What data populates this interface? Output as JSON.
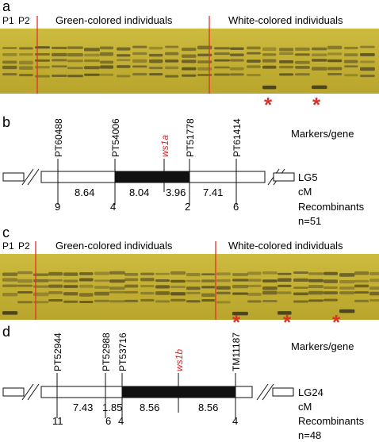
{
  "panels": {
    "a": {
      "letter": "a",
      "lanes_parent": [
        "P1",
        "P2"
      ],
      "group_left": "Green-colored individuals",
      "group_right": "White-colored individuals",
      "asterisk": "*"
    },
    "b": {
      "letter": "b",
      "header": "Markers/gene",
      "markers": [
        "PT60488",
        "PT54006",
        "ws1a",
        "PT51778",
        "PT61414"
      ],
      "gene_marker_index": 2,
      "distances": [
        "8.64",
        "8.04",
        "3.96",
        "7.41"
      ],
      "recombinants": [
        "9",
        "4",
        "2",
        "6"
      ],
      "linkage_group": "LG5",
      "unit": "cM",
      "recombinants_label": "Recombinants",
      "n": "n=51"
    },
    "c": {
      "letter": "c",
      "lanes_parent": [
        "P1",
        "P2"
      ],
      "group_left": "Green-colored individuals",
      "group_right": "White-colored individuals",
      "asterisk": "*"
    },
    "d": {
      "letter": "d",
      "header": "Markers/gene",
      "markers": [
        "PT52944",
        "PT52988",
        "PT53716",
        "ws1b",
        "TM11187"
      ],
      "gene_marker_index": 3,
      "distances": [
        "7.43",
        "1.85",
        "8.56",
        "8.56"
      ],
      "recombinants": [
        "11",
        "6",
        "4",
        "4"
      ],
      "linkage_group": "LG24",
      "unit": "cM",
      "recombinants_label": "Recombinants",
      "n": "n=48"
    }
  },
  "colors": {
    "gel_background": "#c8b63a",
    "band": "#4a4222",
    "divider": "#e0302a",
    "gene_red": "#d8262a",
    "black_segment": "#111111"
  }
}
